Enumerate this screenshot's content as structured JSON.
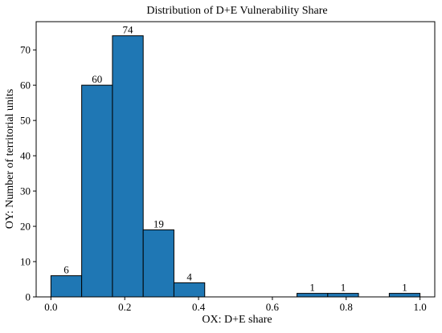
{
  "chart_data": {
    "type": "bar",
    "title": "Distribution of D+E Vulnerability Share",
    "xlabel": "OX: D+E share",
    "ylabel": "OY: Number of territorial units",
    "xlim": [
      -0.04,
      1.04
    ],
    "ylim": [
      0,
      78
    ],
    "bin_edges": [
      0.0,
      0.0833,
      0.1667,
      0.25,
      0.3333,
      0.4167,
      0.5,
      0.5833,
      0.6667,
      0.75,
      0.8333,
      0.9167,
      1.0
    ],
    "counts": [
      6,
      60,
      74,
      19,
      4,
      0,
      0,
      0,
      1,
      1,
      0,
      1
    ],
    "data_labels": [
      "6",
      "60",
      "74",
      "19",
      "4",
      "",
      "",
      "",
      "1",
      "1",
      "",
      "1"
    ],
    "x_ticks": [
      {
        "value": 0.0,
        "label": "0.0"
      },
      {
        "value": 0.2,
        "label": "0.2"
      },
      {
        "value": 0.4,
        "label": "0.4"
      },
      {
        "value": 0.6,
        "label": "0.6"
      },
      {
        "value": 0.8,
        "label": "0.8"
      },
      {
        "value": 1.0,
        "label": "1.0"
      }
    ],
    "y_ticks": [
      {
        "value": 0,
        "label": "0"
      },
      {
        "value": 10,
        "label": "10"
      },
      {
        "value": 20,
        "label": "20"
      },
      {
        "value": 30,
        "label": "30"
      },
      {
        "value": 40,
        "label": "40"
      },
      {
        "value": 50,
        "label": "50"
      },
      {
        "value": 60,
        "label": "60"
      },
      {
        "value": 70,
        "label": "70"
      }
    ],
    "bar_color": "#1f77b4",
    "edge_color": "#000000",
    "grid": false,
    "legend": "none"
  }
}
